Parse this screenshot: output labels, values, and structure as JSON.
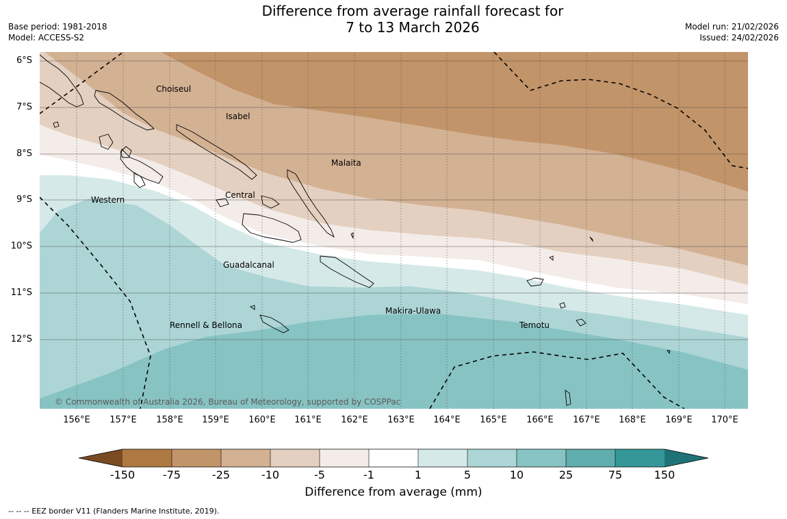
{
  "title": {
    "line1": "Difference from average rainfall forecast for",
    "line2": "7 to 13 March 2026"
  },
  "meta": {
    "base_period": "Base period: 1981-2018",
    "model": "Model: ACCESS-S2",
    "model_run": "Model run: 21/02/2026",
    "issued": "Issued: 24/02/2026"
  },
  "map": {
    "lat_labels": [
      "6°S",
      "7°S",
      "8°S",
      "9°S",
      "10°S",
      "11°S",
      "12°S"
    ],
    "lon_labels": [
      "156°E",
      "157°E",
      "158°E",
      "159°E",
      "160°E",
      "161°E",
      "162°E",
      "163°E",
      "164°E",
      "165°E",
      "166°E",
      "167°E",
      "168°E",
      "169°E",
      "170°E"
    ],
    "regions": {
      "choiseul": "Choiseul",
      "isabel": "Isabel",
      "malaita": "Malaita",
      "central": "Central",
      "western": "Western",
      "guadalcanal": "Guadalcanal",
      "makira": "Makira-Ulawa",
      "rennell": "Rennell & Bellona",
      "temotu": "Temotu"
    },
    "copyright": "© Commonwealth of Australia 2026, Bureau of Meteorology, supported by COSPPac",
    "colors": {
      "c_neg75": "#ae7943",
      "c_neg25": "#c29469",
      "c_neg10": "#d3b193",
      "c_neg5": "#e4d0c0",
      "c_neg1": "#f4ece8",
      "c_zero": "#ffffff",
      "c_pos1": "#d5e9e8",
      "c_pos5": "#add5d6",
      "c_pos10": "#88c3c3",
      "c_pos25": "#5fadac",
      "c_pos75": "#339897"
    }
  },
  "colorbar": {
    "ticks": [
      "-150",
      "-75",
      "-25",
      "-10",
      "-5",
      "-1",
      "1",
      "5",
      "10",
      "25",
      "75",
      "150"
    ],
    "label": "Difference from average (mm)",
    "colors": [
      "#ae7943",
      "#c29469",
      "#d3b193",
      "#e4d0c0",
      "#f4ece8",
      "#ffffff",
      "#d5e9e8",
      "#add5d6",
      "#88c3c3",
      "#5fadac",
      "#339897"
    ],
    "extend_low": "#7a4a22",
    "extend_high": "#1f7376"
  },
  "footer": {
    "eez_note": "--  --  -- EEZ border V11 (Flanders Marine Institute, 2019)."
  }
}
